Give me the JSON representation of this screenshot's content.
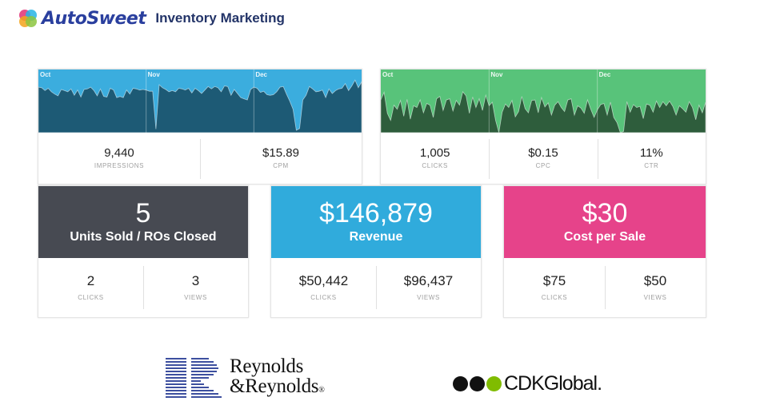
{
  "brand": {
    "name": "AutoSweet",
    "product": "Inventory Marketing"
  },
  "colors": {
    "impressions_bg": "#3badde",
    "impressions_area": "#1d5a75",
    "clicks_bg": "#58c37a",
    "clicks_area": "#2e5d3c",
    "units_bg": "#474a52",
    "revenue_bg": "#30abdc",
    "cost_bg": "#e6438a"
  },
  "charts": [
    {
      "name": "impressions",
      "type": "area",
      "months": [
        "Oct",
        "Nov",
        "Dec"
      ],
      "values": [
        78,
        77,
        72,
        76,
        70,
        66,
        63,
        74,
        72,
        70,
        75,
        64,
        73,
        61,
        74,
        75,
        78,
        72,
        63,
        75,
        62,
        61,
        76,
        73,
        60,
        62,
        60,
        73,
        66,
        76,
        75,
        73,
        74,
        73,
        71,
        71,
        6,
        82,
        77,
        74,
        70,
        72,
        70,
        76,
        75,
        73,
        76,
        68,
        76,
        72,
        67,
        73,
        79,
        75,
        79,
        77,
        70,
        80,
        79,
        64,
        74,
        67,
        60,
        58,
        56,
        74,
        78,
        76,
        69,
        71,
        65,
        64,
        65,
        70,
        78,
        79,
        66,
        54,
        40,
        4,
        7,
        56,
        64,
        79,
        75,
        70,
        71,
        73,
        60,
        75,
        67,
        72,
        75,
        76,
        84,
        72,
        80,
        90,
        77,
        87
      ]
    },
    {
      "name": "clicks",
      "type": "area",
      "months": [
        "Oct",
        "Nov",
        "Dec"
      ],
      "values": [
        56,
        69,
        33,
        21,
        47,
        40,
        55,
        28,
        57,
        23,
        46,
        43,
        56,
        34,
        50,
        47,
        26,
        58,
        62,
        38,
        56,
        58,
        37,
        55,
        47,
        70,
        63,
        33,
        61,
        43,
        58,
        38,
        64,
        46,
        52,
        21,
        0,
        35,
        49,
        43,
        55,
        27,
        36,
        62,
        41,
        34,
        55,
        56,
        34,
        60,
        44,
        51,
        30,
        47,
        53,
        43,
        36,
        56,
        58,
        30,
        46,
        42,
        33,
        56,
        40,
        26,
        39,
        48,
        50,
        30,
        52,
        26,
        17,
        0,
        2,
        53,
        35,
        48,
        43,
        45,
        24,
        49,
        47,
        35,
        54,
        43,
        53,
        46,
        54,
        45,
        30,
        46,
        41,
        35,
        53,
        43,
        22,
        47,
        34,
        52
      ]
    }
  ],
  "impressions_card": {
    "stats": [
      {
        "value": "9,440",
        "label": "IMPRESSIONS"
      },
      {
        "value": "$15.89",
        "label": "CPM"
      }
    ]
  },
  "clicks_card": {
    "stats": [
      {
        "value": "1,005",
        "label": "CLICKS"
      },
      {
        "value": "$0.15",
        "label": "CPC"
      },
      {
        "value": "11%",
        "label": "CTR"
      }
    ]
  },
  "kpis": [
    {
      "name": "units",
      "value": "5",
      "title": "Units Sold / ROs Closed",
      "stats": [
        {
          "value": "2",
          "label": "CLICKS"
        },
        {
          "value": "3",
          "label": "VIEWS"
        }
      ]
    },
    {
      "name": "revenue",
      "value": "$146,879",
      "title": "Revenue",
      "stats": [
        {
          "value": "$50,442",
          "label": "CLICKS"
        },
        {
          "value": "$96,437",
          "label": "VIEWS"
        }
      ]
    },
    {
      "name": "cost",
      "value": "$30",
      "title": "Cost per Sale",
      "stats": [
        {
          "value": "$75",
          "label": "CLICKS"
        },
        {
          "value": "$50",
          "label": "VIEWS"
        }
      ]
    }
  ],
  "partners": {
    "reynolds": {
      "line1": "Reynolds",
      "line2": "&Reynolds",
      "mark": "®"
    },
    "cdk": {
      "brand": "CDK",
      "word": "Global",
      "mark": "."
    }
  }
}
